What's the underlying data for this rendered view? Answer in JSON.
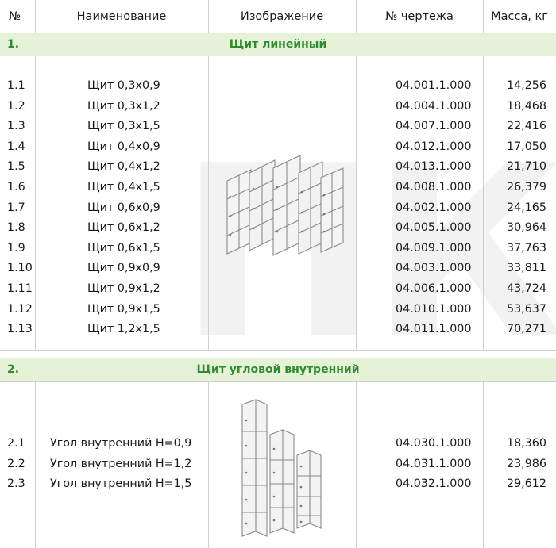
{
  "header": {
    "num": "№",
    "name": "Наименование",
    "image": "Изображение",
    "drawing": "№ чертежа",
    "mass": "Масса, кг"
  },
  "sections": [
    {
      "number": "1.",
      "title": "Щит линейный",
      "rows": [
        {
          "num": "1.1",
          "name": "Щит 0,3х0,9",
          "drawing": "04.001.1.000",
          "mass": "14,256"
        },
        {
          "num": "1.2",
          "name": "Щит 0,3х1,2",
          "drawing": "04.004.1.000",
          "mass": "18,468"
        },
        {
          "num": "1.3",
          "name": "Щит 0,3х1,5",
          "drawing": "04.007.1.000",
          "mass": "22,416"
        },
        {
          "num": "1.4",
          "name": "Щит 0,4х0,9",
          "drawing": "04.012.1.000",
          "mass": "17,050"
        },
        {
          "num": "1.5",
          "name": "Щит 0,4х1,2",
          "drawing": "04.013.1.000",
          "mass": "21,710"
        },
        {
          "num": "1.6",
          "name": "Щит 0,4х1,5",
          "drawing": "04.008.1.000",
          "mass": "26,379"
        },
        {
          "num": "1.7",
          "name": "Щит 0,6х0,9",
          "drawing": "04.002.1.000",
          "mass": "24,165"
        },
        {
          "num": "1.8",
          "name": "Щит 0,6х1,2",
          "drawing": "04.005.1.000",
          "mass": "30,964"
        },
        {
          "num": "1.9",
          "name": "Щит 0,6х1,5",
          "drawing": "04.009.1.000",
          "mass": "37,763"
        },
        {
          "num": "1.10",
          "name": "Щит 0,9х0,9",
          "drawing": "04.003.1.000",
          "mass": "33,811"
        },
        {
          "num": "1.11",
          "name": "Щит 0,9х1,2",
          "drawing": "04.006.1.000",
          "mass": "43,724"
        },
        {
          "num": "1.12",
          "name": "Щит 0,9х1,5",
          "drawing": "04.010.1.000",
          "mass": "53,637"
        },
        {
          "num": "1.13",
          "name": "Щит 1,2х1,5",
          "drawing": "04.011.1.000",
          "mass": "70,271"
        }
      ]
    },
    {
      "number": "2.",
      "title": "Щит угловой внутренний",
      "rows": [
        {
          "num": "2.1",
          "name": "Угол внутренний Н=0,9",
          "drawing": "04.030.1.000",
          "mass": "18,360"
        },
        {
          "num": "2.2",
          "name": "Угол внутренний Н=1,2",
          "drawing": "04.031.1.000",
          "mass": "23,986"
        },
        {
          "num": "2.3",
          "name": "Угол внутренний Н=1,5",
          "drawing": "04.032.1.000",
          "mass": "29,612"
        }
      ]
    }
  ],
  "watermark": "ПК",
  "colors": {
    "section_bg": "#e6f2d8",
    "section_text": "#2e8b2e",
    "grid_line": "#cfcfcf"
  },
  "icons": {
    "image_1": "linear-panels-illustration",
    "image_2": "inner-corner-panels-illustration"
  }
}
